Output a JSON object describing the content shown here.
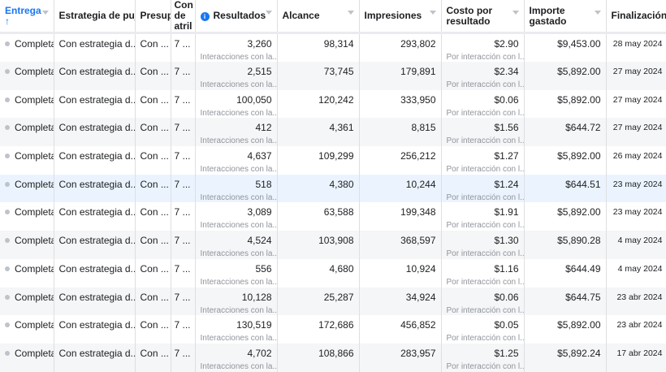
{
  "headers": {
    "entrega": "Entrega",
    "entrega_arrow": "↑",
    "estrategia": "Estrategia de puja",
    "presupuesto": "Presupuesto",
    "atribucion": "Con de atril",
    "resultados": "Resultados",
    "alcance": "Alcance",
    "impresiones": "Impresiones",
    "costo": "Costo por resultado",
    "importe": "Importe gastado",
    "finalizacion": "Finalización"
  },
  "rows": [
    {
      "entrega": "Completa",
      "estrategia": "Con estrategia d...",
      "presupuesto": "Con ...",
      "atribucion": "7 ...",
      "resultados": "3,260",
      "resultados_sub": "Interacciones con la...",
      "alcance": "98,314",
      "impresiones": "293,802",
      "costo": "$2.90",
      "costo_sub": "Por interacción con l...",
      "importe": "$9,453.00",
      "fin": "28 may 2024"
    },
    {
      "entrega": "Completa",
      "estrategia": "Con estrategia d...",
      "presupuesto": "Con ...",
      "atribucion": "7 ...",
      "resultados": "2,515",
      "resultados_sub": "Interacciones con la...",
      "alcance": "73,745",
      "impresiones": "179,891",
      "costo": "$2.34",
      "costo_sub": "Por interacción con l...",
      "importe": "$5,892.00",
      "fin": "27 may 2024"
    },
    {
      "entrega": "Completa",
      "estrategia": "Con estrategia d...",
      "presupuesto": "Con ...",
      "atribucion": "7 ...",
      "resultados": "100,050",
      "resultados_sub": "Interacciones con la...",
      "alcance": "120,242",
      "impresiones": "333,950",
      "costo": "$0.06",
      "costo_sub": "Por interacción con l...",
      "importe": "$5,892.00",
      "fin": "27 may 2024"
    },
    {
      "entrega": "Completa",
      "estrategia": "Con estrategia d...",
      "presupuesto": "Con ...",
      "atribucion": "7 ...",
      "resultados": "412",
      "resultados_sub": "Interacciones con la...",
      "alcance": "4,361",
      "impresiones": "8,815",
      "costo": "$1.56",
      "costo_sub": "Por interacción con l...",
      "importe": "$644.72",
      "fin": "27 may 2024"
    },
    {
      "entrega": "Completa",
      "estrategia": "Con estrategia d...",
      "presupuesto": "Con ...",
      "atribucion": "7 ...",
      "resultados": "4,637",
      "resultados_sub": "Interacciones con la...",
      "alcance": "109,299",
      "impresiones": "256,212",
      "costo": "$1.27",
      "costo_sub": "Por interacción con l...",
      "importe": "$5,892.00",
      "fin": "26 may 2024"
    },
    {
      "entrega": "Completa",
      "estrategia": "Con estrategia d...",
      "presupuesto": "Con ...",
      "atribucion": "7 ...",
      "resultados": "518",
      "resultados_sub": "Interacciones con la...",
      "alcance": "4,380",
      "impresiones": "10,244",
      "costo": "$1.24",
      "costo_sub": "Por interacción con l...",
      "importe": "$644.51",
      "fin": "23 may 2024",
      "highlighted": true
    },
    {
      "entrega": "Completa",
      "estrategia": "Con estrategia d...",
      "presupuesto": "Con ...",
      "atribucion": "7 ...",
      "resultados": "3,089",
      "resultados_sub": "Interacciones con la...",
      "alcance": "63,588",
      "impresiones": "199,348",
      "costo": "$1.91",
      "costo_sub": "Por interacción con l...",
      "importe": "$5,892.00",
      "fin": "23 may 2024"
    },
    {
      "entrega": "Completa",
      "estrategia": "Con estrategia d...",
      "presupuesto": "Con ...",
      "atribucion": "7 ...",
      "resultados": "4,524",
      "resultados_sub": "Interacciones con la...",
      "alcance": "103,908",
      "impresiones": "368,597",
      "costo": "$1.30",
      "costo_sub": "Por interacción con l...",
      "importe": "$5,890.28",
      "fin": "4 may 2024"
    },
    {
      "entrega": "Completa",
      "estrategia": "Con estrategia d...",
      "presupuesto": "Con ...",
      "atribucion": "7 ...",
      "resultados": "556",
      "resultados_sub": "Interacciones con la...",
      "alcance": "4,680",
      "impresiones": "10,924",
      "costo": "$1.16",
      "costo_sub": "Por interacción con l...",
      "importe": "$644.49",
      "fin": "4 may 2024"
    },
    {
      "entrega": "Completa",
      "estrategia": "Con estrategia d...",
      "presupuesto": "Con ...",
      "atribucion": "7 ...",
      "resultados": "10,128",
      "resultados_sub": "Interacciones con la...",
      "alcance": "25,287",
      "impresiones": "34,924",
      "costo": "$0.06",
      "costo_sub": "Por interacción con l...",
      "importe": "$644.75",
      "fin": "23 abr 2024"
    },
    {
      "entrega": "Completa",
      "estrategia": "Con estrategia d...",
      "presupuesto": "Con ...",
      "atribucion": "7 ...",
      "resultados": "130,519",
      "resultados_sub": "Interacciones con la...",
      "alcance": "172,686",
      "impresiones": "456,852",
      "costo": "$0.05",
      "costo_sub": "Por interacción con l...",
      "importe": "$5,892.00",
      "fin": "23 abr 2024"
    },
    {
      "entrega": "Completa",
      "estrategia": "Con estrategia d...",
      "presupuesto": "Con ...",
      "atribucion": "7 ...",
      "resultados": "4,702",
      "resultados_sub": "Interacciones con la...",
      "alcance": "108,866",
      "impresiones": "283,957",
      "costo": "$1.25",
      "costo_sub": "Por interacción con l...",
      "importe": "$5,892.24",
      "fin": "17 abr 2024"
    }
  ]
}
